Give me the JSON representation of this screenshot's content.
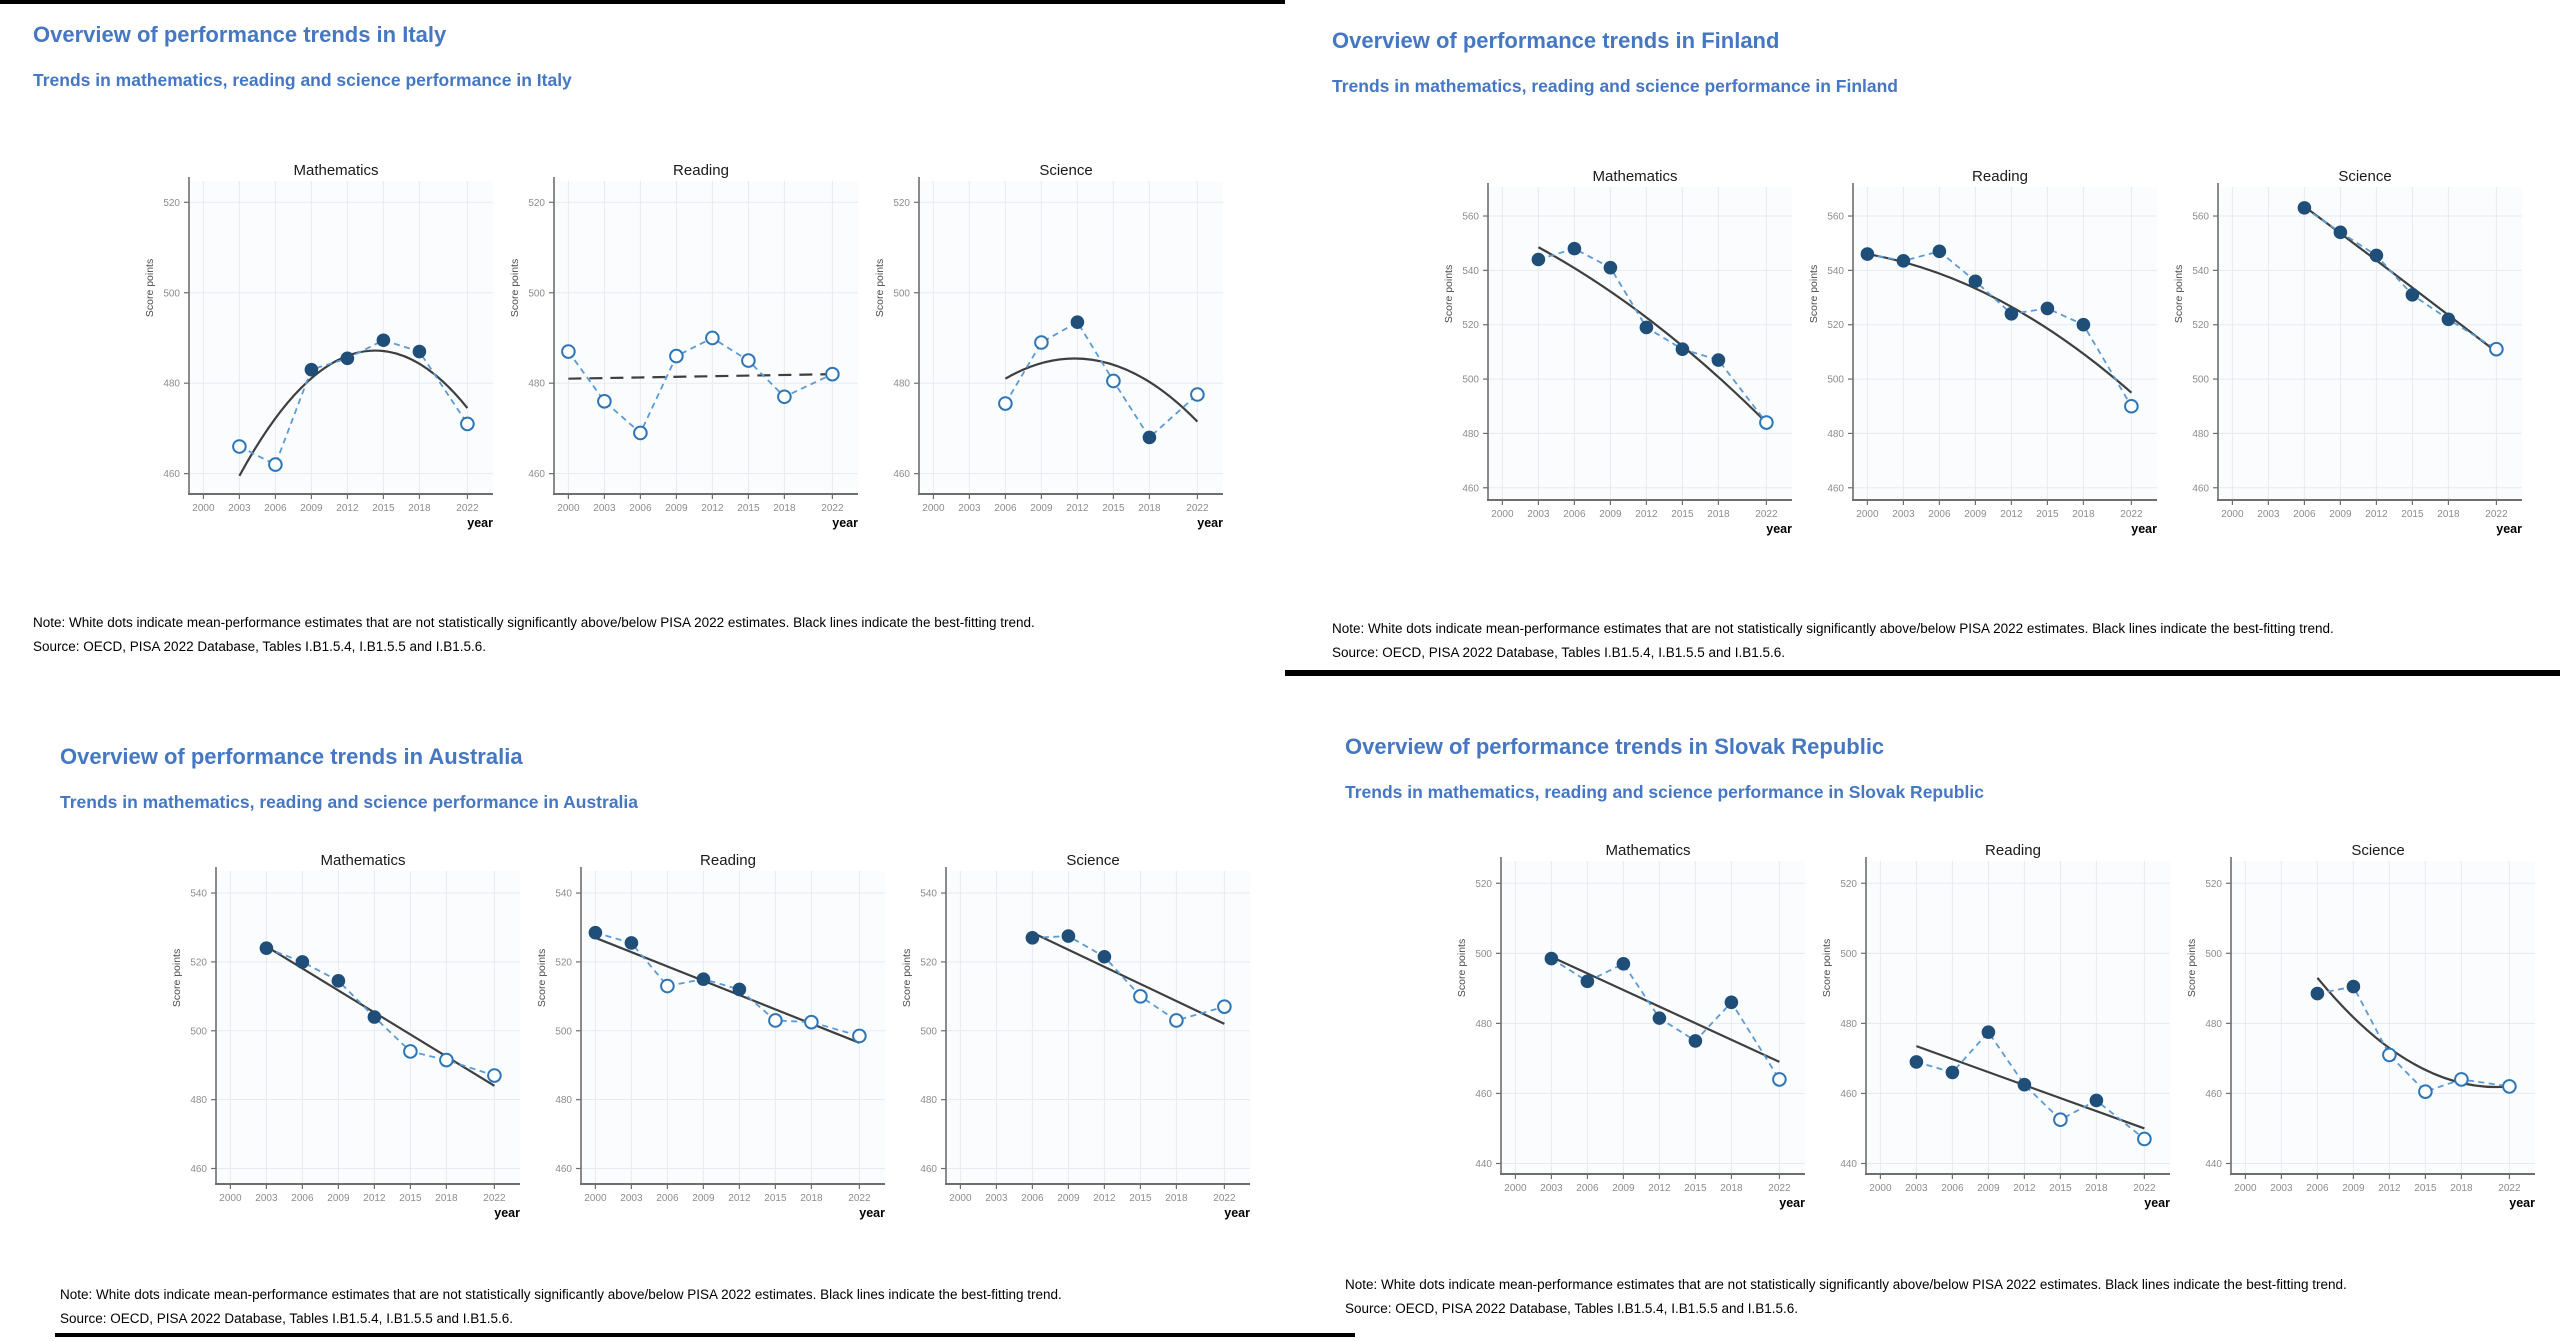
{
  "colors": {
    "heading_blue": "#4577c2",
    "series_blue": "#5b9bd5",
    "marker_filled": "#1f4e79",
    "marker_open_stroke": "#2e75b6",
    "trend_gray": "#3f3f3f",
    "grid": "#e6ebf3",
    "plot_bg": "#fafcfe",
    "spine": "#6e6e6e",
    "tick_label": "#8c8c8c",
    "axis_label": "#4d4d4d",
    "chart_title": "#1a1a1a"
  },
  "shared": {
    "ylabel": "Score points",
    "xlabel": "year",
    "xticks": [
      2000,
      2003,
      2006,
      2009,
      2012,
      2015,
      2018,
      2022
    ],
    "note": "Note: White dots indicate mean-performance estimates that are not statistically significantly above/below PISA 2022 estimates. Black lines indicate the best-fitting trend.",
    "source": "Source: OECD, PISA 2022 Database, Tables I.B1.5.4, I.B1.5.5 and I.B1.5.6."
  },
  "chart_data": [
    {
      "country": "Italy",
      "title": "Overview of performance trends in Italy",
      "subtitle": "Trends in mathematics, reading and science performance in Italy",
      "type": "line",
      "ylim": [
        455.5,
        522.5
      ],
      "yticks": [
        460,
        480,
        500,
        520
      ],
      "charts": [
        {
          "title": "Mathematics",
          "points": [
            {
              "year": 2003,
              "score": 466,
              "marker": "open"
            },
            {
              "year": 2006,
              "score": 462,
              "marker": "open"
            },
            {
              "year": 2009,
              "score": 483,
              "marker": "filled"
            },
            {
              "year": 2012,
              "score": 485.5,
              "marker": "filled"
            },
            {
              "year": 2015,
              "score": 489.5,
              "marker": "filled"
            },
            {
              "year": 2018,
              "score": 487,
              "marker": "filled"
            },
            {
              "year": 2022,
              "score": 471,
              "marker": "open"
            }
          ],
          "trend": {
            "type": "quadratic",
            "dashed": false,
            "x": [
              2003,
              2012.5,
              2022
            ],
            "y": [
              459.5,
              486.5,
              474.5
            ]
          }
        },
        {
          "title": "Reading",
          "points": [
            {
              "year": 2000,
              "score": 487,
              "marker": "open"
            },
            {
              "year": 2003,
              "score": 476,
              "marker": "open"
            },
            {
              "year": 2006,
              "score": 469,
              "marker": "open"
            },
            {
              "year": 2009,
              "score": 486,
              "marker": "open"
            },
            {
              "year": 2012,
              "score": 490,
              "marker": "open"
            },
            {
              "year": 2015,
              "score": 485,
              "marker": "open"
            },
            {
              "year": 2018,
              "score": 477,
              "marker": "open"
            },
            {
              "year": 2022,
              "score": 482,
              "marker": "open"
            }
          ],
          "trend": {
            "type": "linear",
            "dashed": true,
            "x": [
              2000,
              2022
            ],
            "y": [
              481,
              482
            ]
          }
        },
        {
          "title": "Science",
          "points": [
            {
              "year": 2006,
              "score": 475.5,
              "marker": "open"
            },
            {
              "year": 2009,
              "score": 489,
              "marker": "open"
            },
            {
              "year": 2012,
              "score": 493.5,
              "marker": "filled"
            },
            {
              "year": 2015,
              "score": 480.5,
              "marker": "open"
            },
            {
              "year": 2018,
              "score": 468,
              "marker": "filled"
            },
            {
              "year": 2022,
              "score": 477.5,
              "marker": "open"
            }
          ],
          "trend": {
            "type": "quadratic",
            "dashed": false,
            "x": [
              2006,
              2014,
              2022
            ],
            "y": [
              481,
              484.8,
              471.5
            ]
          }
        }
      ]
    },
    {
      "country": "Finland",
      "title": "Overview of performance trends in Finland",
      "subtitle": "Trends in mathematics, reading and science performance in Finland",
      "type": "line",
      "ylim": [
        455.5,
        567
      ],
      "yticks": [
        460,
        480,
        500,
        520,
        540,
        560
      ],
      "charts": [
        {
          "title": "Mathematics",
          "points": [
            {
              "year": 2003,
              "score": 544,
              "marker": "filled"
            },
            {
              "year": 2006,
              "score": 548,
              "marker": "filled"
            },
            {
              "year": 2009,
              "score": 541,
              "marker": "filled"
            },
            {
              "year": 2012,
              "score": 519,
              "marker": "filled"
            },
            {
              "year": 2015,
              "score": 511,
              "marker": "filled"
            },
            {
              "year": 2018,
              "score": 507,
              "marker": "filled"
            },
            {
              "year": 2022,
              "score": 484,
              "marker": "open"
            }
          ],
          "trend": {
            "type": "quadratic",
            "dashed": false,
            "x": [
              2003,
              2012.5,
              2022
            ],
            "y": [
              548.5,
              521,
              484
            ]
          }
        },
        {
          "title": "Reading",
          "points": [
            {
              "year": 2000,
              "score": 546,
              "marker": "filled"
            },
            {
              "year": 2003,
              "score": 543.5,
              "marker": "filled"
            },
            {
              "year": 2006,
              "score": 547,
              "marker": "filled"
            },
            {
              "year": 2009,
              "score": 536,
              "marker": "filled"
            },
            {
              "year": 2012,
              "score": 524,
              "marker": "filled"
            },
            {
              "year": 2015,
              "score": 526,
              "marker": "filled"
            },
            {
              "year": 2018,
              "score": 520,
              "marker": "filled"
            },
            {
              "year": 2022,
              "score": 490,
              "marker": "open"
            }
          ],
          "trend": {
            "type": "quadratic",
            "dashed": false,
            "x": [
              2000,
              2011,
              2022
            ],
            "y": [
              546,
              529,
              495
            ]
          }
        },
        {
          "title": "Science",
          "points": [
            {
              "year": 2006,
              "score": 563,
              "marker": "filled"
            },
            {
              "year": 2009,
              "score": 554,
              "marker": "filled"
            },
            {
              "year": 2012,
              "score": 545.5,
              "marker": "filled"
            },
            {
              "year": 2015,
              "score": 531,
              "marker": "filled"
            },
            {
              "year": 2018,
              "score": 522,
              "marker": "filled"
            },
            {
              "year": 2022,
              "score": 511,
              "marker": "open"
            }
          ],
          "trend": {
            "type": "quadratic",
            "dashed": false,
            "x": [
              2006,
              2014,
              2022
            ],
            "y": [
              563.5,
              537,
              510
            ]
          }
        }
      ]
    },
    {
      "country": "Australia",
      "title": "Overview of performance trends in Australia",
      "subtitle": "Trends in mathematics, reading and science performance in Australia",
      "type": "line",
      "ylim": [
        455.5,
        543.5
      ],
      "yticks": [
        460,
        480,
        500,
        520,
        540
      ],
      "charts": [
        {
          "title": "Mathematics",
          "points": [
            {
              "year": 2003,
              "score": 524,
              "marker": "filled"
            },
            {
              "year": 2006,
              "score": 520,
              "marker": "filled"
            },
            {
              "year": 2009,
              "score": 514.5,
              "marker": "filled"
            },
            {
              "year": 2012,
              "score": 504,
              "marker": "filled"
            },
            {
              "year": 2015,
              "score": 494,
              "marker": "open"
            },
            {
              "year": 2018,
              "score": 491.5,
              "marker": "open"
            },
            {
              "year": 2022,
              "score": 487,
              "marker": "open"
            }
          ],
          "trend": {
            "type": "linear",
            "dashed": false,
            "x": [
              2003,
              2022
            ],
            "y": [
              524.5,
              484
            ]
          }
        },
        {
          "title": "Reading",
          "points": [
            {
              "year": 2000,
              "score": 528.5,
              "marker": "filled"
            },
            {
              "year": 2003,
              "score": 525.5,
              "marker": "filled"
            },
            {
              "year": 2006,
              "score": 513,
              "marker": "open"
            },
            {
              "year": 2009,
              "score": 515,
              "marker": "filled"
            },
            {
              "year": 2012,
              "score": 512,
              "marker": "filled"
            },
            {
              "year": 2015,
              "score": 503,
              "marker": "open"
            },
            {
              "year": 2018,
              "score": 502.5,
              "marker": "open"
            },
            {
              "year": 2022,
              "score": 498.5,
              "marker": "open"
            }
          ],
          "trend": {
            "type": "linear",
            "dashed": false,
            "x": [
              2000,
              2022
            ],
            "y": [
              527,
              496.5
            ]
          }
        },
        {
          "title": "Science",
          "points": [
            {
              "year": 2006,
              "score": 527,
              "marker": "filled"
            },
            {
              "year": 2009,
              "score": 527.5,
              "marker": "filled"
            },
            {
              "year": 2012,
              "score": 521.5,
              "marker": "filled"
            },
            {
              "year": 2015,
              "score": 510,
              "marker": "open"
            },
            {
              "year": 2018,
              "score": 503,
              "marker": "open"
            },
            {
              "year": 2022,
              "score": 507,
              "marker": "open"
            }
          ],
          "trend": {
            "type": "linear",
            "dashed": false,
            "x": [
              2006,
              2022
            ],
            "y": [
              528.5,
              502
            ]
          }
        }
      ]
    },
    {
      "country": "Slovak Republic",
      "title": "Overview of performance trends in Slovak Republic",
      "subtitle": "Trends in mathematics, reading and science performance in Slovak Republic",
      "type": "line",
      "ylim": [
        437,
        523.5
      ],
      "yticks": [
        440,
        460,
        480,
        500,
        520
      ],
      "charts": [
        {
          "title": "Mathematics",
          "points": [
            {
              "year": 2003,
              "score": 498.5,
              "marker": "filled"
            },
            {
              "year": 2006,
              "score": 492,
              "marker": "filled"
            },
            {
              "year": 2009,
              "score": 497,
              "marker": "filled"
            },
            {
              "year": 2012,
              "score": 481.5,
              "marker": "filled"
            },
            {
              "year": 2015,
              "score": 475,
              "marker": "filled"
            },
            {
              "year": 2018,
              "score": 486,
              "marker": "filled"
            },
            {
              "year": 2022,
              "score": 464,
              "marker": "open"
            }
          ],
          "trend": {
            "type": "linear",
            "dashed": false,
            "x": [
              2003,
              2022
            ],
            "y": [
              499,
              469
            ]
          }
        },
        {
          "title": "Reading",
          "points": [
            {
              "year": 2003,
              "score": 469,
              "marker": "filled"
            },
            {
              "year": 2006,
              "score": 466,
              "marker": "filled"
            },
            {
              "year": 2009,
              "score": 477.5,
              "marker": "filled"
            },
            {
              "year": 2012,
              "score": 462.5,
              "marker": "filled"
            },
            {
              "year": 2015,
              "score": 452.5,
              "marker": "open"
            },
            {
              "year": 2018,
              "score": 458,
              "marker": "filled"
            },
            {
              "year": 2022,
              "score": 447,
              "marker": "open"
            }
          ],
          "trend": {
            "type": "linear",
            "dashed": false,
            "x": [
              2003,
              2022
            ],
            "y": [
              473.5,
              450
            ]
          }
        },
        {
          "title": "Science",
          "points": [
            {
              "year": 2006,
              "score": 488.5,
              "marker": "filled"
            },
            {
              "year": 2009,
              "score": 490.5,
              "marker": "filled"
            },
            {
              "year": 2012,
              "score": 471,
              "marker": "open"
            },
            {
              "year": 2015,
              "score": 460.5,
              "marker": "open"
            },
            {
              "year": 2018,
              "score": 464,
              "marker": "open"
            },
            {
              "year": 2022,
              "score": 462,
              "marker": "open"
            }
          ],
          "trend": {
            "type": "quadratic",
            "dashed": false,
            "x": [
              2006,
              2014,
              2022
            ],
            "y": [
              493,
              468.5,
              462
            ]
          }
        }
      ]
    }
  ]
}
